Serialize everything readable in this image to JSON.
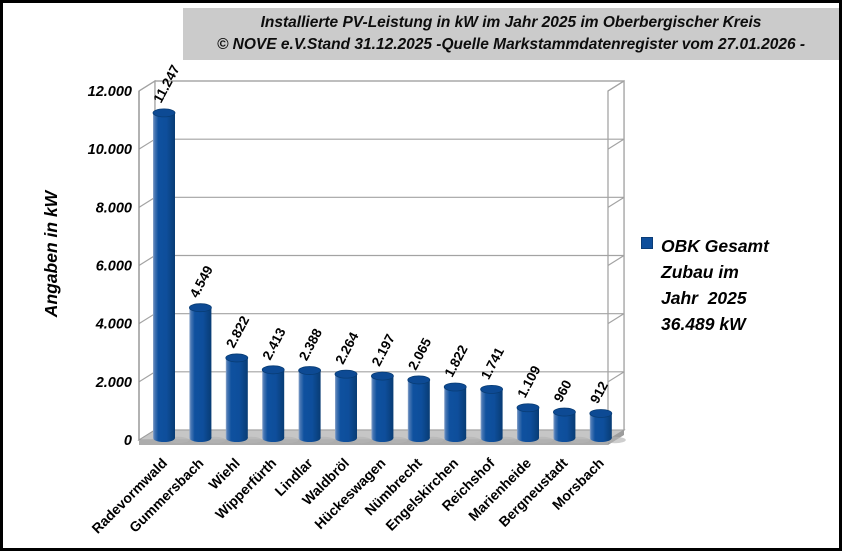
{
  "title": {
    "line1": "Installierte PV-Leistung in kW im Jahr 2025 im Oberbergischer Kreis",
    "line2": "© NOVE e.V.Stand 31.12.2025 -Quelle Markstammdatenregister vom 27.01.2026 -"
  },
  "legend": {
    "lines": [
      "OBK Gesamt",
      "Zubau im",
      "Jahr  2025",
      "36.489 kW"
    ]
  },
  "colors": {
    "bar": "#0e4e9b",
    "bar_dark": "#083c74",
    "bar_light": "#8fa8cc",
    "bar_top": "#0d4a94",
    "grid": "#a3a3a3",
    "wall_edge": "#9e9e9e",
    "floor": "#c6c6c6",
    "floor_side": "#acacac",
    "title_bg": "#cbcbcb",
    "shadow": "#b3b3b3"
  },
  "chart_data": {
    "type": "bar",
    "style": "3d-cylinder",
    "title": "Installierte PV-Leistung in kW im Jahr 2025 im Oberbergischer Kreis",
    "subtitle": "© NOVE e.V.Stand 31.12.2025 -Quelle Markstammdatenregister vom 27.01.2026 -",
    "xlabel": "",
    "ylabel": "Angaben in kW",
    "categories": [
      "Radevormwald",
      "Gummersbach",
      "Wiehl",
      "Wipperfürth",
      "Lindlar",
      "Waldbröl",
      "Hückeswagen",
      "Nümbrecht",
      "Engelskirchen",
      "Reichshof",
      "Marienheide",
      "Bergneustadt",
      "Morsbach"
    ],
    "values": [
      11247,
      4549,
      2822,
      2413,
      2388,
      2264,
      2197,
      2065,
      1822,
      1741,
      1109,
      960,
      912
    ],
    "value_labels": [
      "11.247",
      "4.549",
      "2.822",
      "2.413",
      "2.388",
      "2.264",
      "2.197",
      "2.065",
      "1.822",
      "1.741",
      "1.109",
      "960",
      "912"
    ],
    "ylim": [
      0,
      12000
    ],
    "ytick_step": 2000,
    "ytick_labels": [
      "0",
      "2.000",
      "4.000",
      "6.000",
      "8.000",
      "10.000",
      "12.000"
    ],
    "grid": true,
    "legend_position": "right",
    "legend_label": "OBK Gesamt Zubau im Jahr 2025 36.489 kW",
    "series_name": "OBK Gesamt Zubau im Jahr 2025"
  }
}
